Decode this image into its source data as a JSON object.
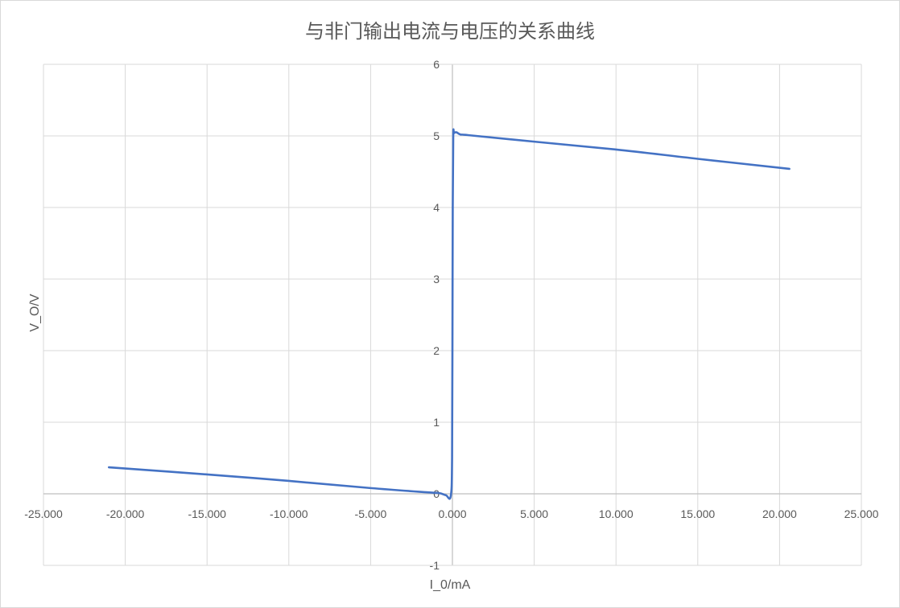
{
  "chart_data": {
    "type": "scatter",
    "title": "与非门输出电流与电压的关系曲线",
    "xlabel": "I_0/mA",
    "ylabel": "V_O/V",
    "xlim": [
      -25,
      25
    ],
    "ylim": [
      -1,
      6
    ],
    "x_ticks": [
      -25,
      -20,
      -15,
      -10,
      -5,
      0,
      5,
      10,
      15,
      20,
      25
    ],
    "x_tick_labels": [
      "-25.000",
      "-20.000",
      "-15.000",
      "-10.000",
      "-5.000",
      "0.000",
      "5.000",
      "10.000",
      "15.000",
      "20.000",
      "25.000"
    ],
    "y_ticks": [
      -1,
      0,
      1,
      2,
      3,
      4,
      5,
      6
    ],
    "y_tick_labels": [
      "-1",
      "0",
      "1",
      "2",
      "3",
      "4",
      "5",
      "6"
    ],
    "grid": true,
    "legend": "none",
    "series": [
      {
        "color": "#4472c4",
        "smooth": true,
        "x": [
          -21.0,
          -15.0,
          -10.0,
          -5.0,
          -1.5,
          -0.8,
          -0.4,
          -0.1,
          -0.02,
          0.0,
          0.02,
          0.05,
          0.1,
          0.25,
          0.5,
          1.0,
          5.0,
          10.0,
          15.0,
          20.6
        ],
        "y": [
          0.37,
          0.27,
          0.18,
          0.08,
          0.02,
          0.01,
          -0.02,
          -0.03,
          0.5,
          2.0,
          4.0,
          5.0,
          5.04,
          5.05,
          5.02,
          5.01,
          4.92,
          4.81,
          4.68,
          4.54
        ]
      }
    ]
  }
}
